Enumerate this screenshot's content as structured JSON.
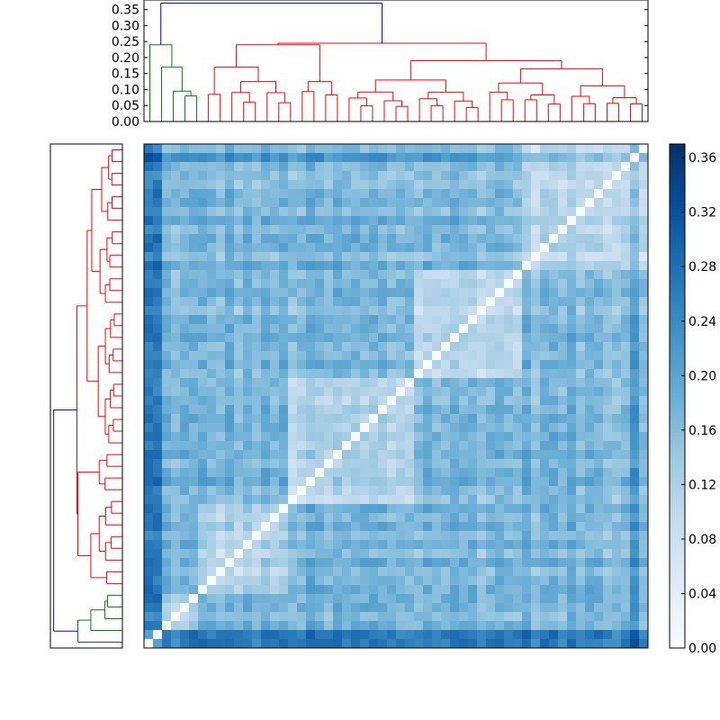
{
  "chart_data": [
    {
      "type": "dendrogram",
      "orientation": "top",
      "ylim": [
        0,
        0.38
      ],
      "yticks": [
        "0.00",
        "0.05",
        "0.10",
        "0.15",
        "0.20",
        "0.25",
        "0.30",
        "0.35"
      ],
      "root_height": 0.37,
      "major_merge_height": 0.245,
      "cluster_colors": [
        "#0000ff",
        "#ff0000",
        "#008000"
      ]
    },
    {
      "type": "dendrogram",
      "orientation": "left",
      "ticks": "none",
      "cluster_colors": [
        "#0000ff",
        "#ff0000",
        "#008000"
      ]
    },
    {
      "type": "heatmap",
      "rows": 56,
      "cols": 56,
      "diagonal_value": 0.0,
      "value_range": [
        0.0,
        0.37
      ],
      "colormap": "Blues",
      "colorbar_ticks": [
        "0.00",
        "0.04",
        "0.08",
        "0.12",
        "0.16",
        "0.20",
        "0.24",
        "0.28",
        "0.32",
        "0.36"
      ]
    }
  ],
  "colors": {
    "axis": "#000000",
    "dendro_blue": "#0000ff",
    "dendro_red": "#ff0000",
    "dendro_green": "#008000"
  }
}
